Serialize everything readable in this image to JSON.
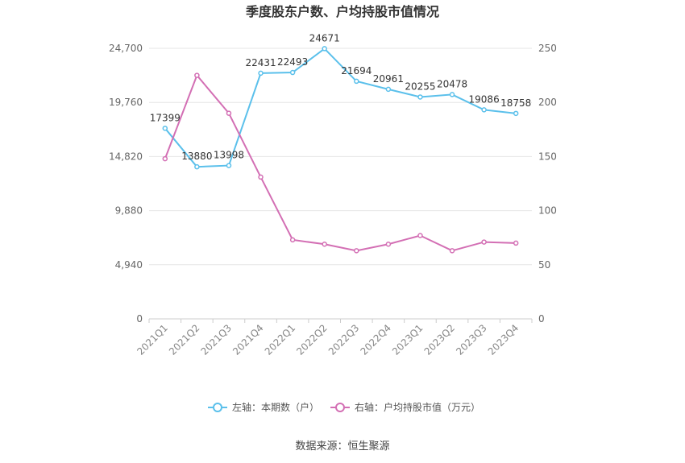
{
  "chart_data": {
    "type": "line",
    "title": "季度股东户数、户均持股市值情况",
    "categories": [
      "2021Q1",
      "2021Q2",
      "2021Q3",
      "2021Q4",
      "2022Q1",
      "2022Q2",
      "2022Q3",
      "2022Q4",
      "2023Q1",
      "2023Q2",
      "2023Q3",
      "2023Q4"
    ],
    "left_axis": {
      "ticks": [
        "0",
        "4,940",
        "9,880",
        "14,820",
        "19,760",
        "24,700"
      ],
      "ylim": [
        0,
        24700
      ]
    },
    "right_axis": {
      "ticks": [
        "0",
        "50",
        "100",
        "150",
        "200",
        "250"
      ],
      "ylim": [
        0,
        250
      ]
    },
    "series": [
      {
        "name": "左轴：本期数（户）",
        "axis": "left",
        "color": "#5bc0eb",
        "values": [
          17399,
          13880,
          13998,
          22431,
          22493,
          24671,
          21694,
          20961,
          20255,
          20478,
          19086,
          18758
        ],
        "labels": [
          "17399",
          "13880",
          "13998",
          "22431",
          "22493",
          "24671",
          "21694",
          "20961",
          "20255",
          "20478",
          "19086",
          "18758"
        ]
      },
      {
        "name": "右轴：户均持股市值（万元）",
        "axis": "right",
        "color": "#d36fb4",
        "values": [
          148,
          225,
          190,
          131,
          73,
          69,
          63,
          69,
          77,
          63,
          71,
          70
        ]
      }
    ],
    "grid": true,
    "legend_position": "bottom"
  },
  "source_text": "数据来源：恒生聚源"
}
